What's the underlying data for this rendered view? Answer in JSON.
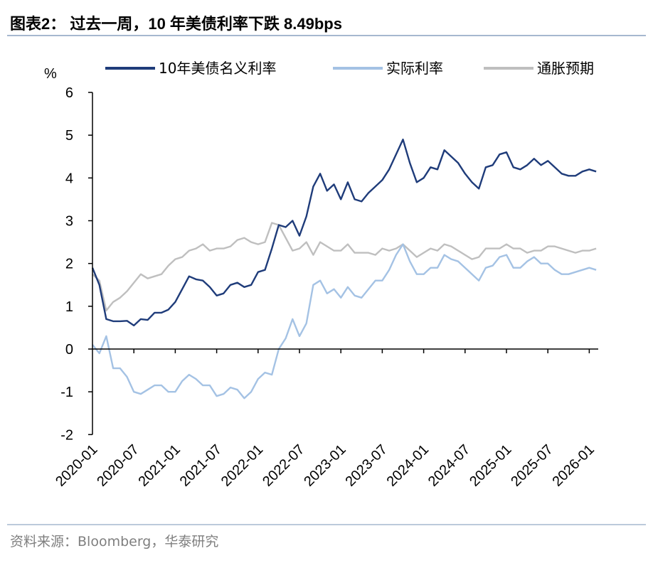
{
  "title": "图表2：  过去一周，10 年美债利率下跌 8.49bps",
  "source": "资料来源：Bloomberg，华泰研究",
  "chart_data": {
    "type": "line",
    "ylabel": "%",
    "ylim": [
      -2,
      6
    ],
    "yticks": [
      6,
      5,
      4,
      3,
      2,
      1,
      0,
      -1,
      -2
    ],
    "xlim": [
      "2020-01",
      "2026-02"
    ],
    "xticks": [
      "2020-01",
      "2020-07",
      "2021-01",
      "2021-07",
      "2022-01",
      "2022-07",
      "2023-01",
      "2023-07",
      "2024-01",
      "2024-07",
      "2025-01",
      "2025-07",
      "2026-01"
    ],
    "grid": false,
    "legend": "top",
    "x": [
      "2020-01",
      "2020-02",
      "2020-03",
      "2020-04",
      "2020-05",
      "2020-06",
      "2020-07",
      "2020-08",
      "2020-09",
      "2020-10",
      "2020-11",
      "2020-12",
      "2021-01",
      "2021-02",
      "2021-03",
      "2021-04",
      "2021-05",
      "2021-06",
      "2021-07",
      "2021-08",
      "2021-09",
      "2021-10",
      "2021-11",
      "2021-12",
      "2022-01",
      "2022-02",
      "2022-03",
      "2022-04",
      "2022-05",
      "2022-06",
      "2022-07",
      "2022-08",
      "2022-09",
      "2022-10",
      "2022-11",
      "2022-12",
      "2023-01",
      "2023-02",
      "2023-03",
      "2023-04",
      "2023-05",
      "2023-06",
      "2023-07",
      "2023-08",
      "2023-09",
      "2023-10",
      "2023-11",
      "2023-12",
      "2024-01",
      "2024-02",
      "2024-03",
      "2024-04",
      "2024-05",
      "2024-06",
      "2024-07",
      "2024-08",
      "2024-09",
      "2024-10",
      "2024-11",
      "2024-12",
      "2025-01",
      "2025-02",
      "2025-03",
      "2025-04",
      "2025-05",
      "2025-06",
      "2025-07",
      "2025-08",
      "2025-09",
      "2025-10",
      "2025-11",
      "2025-12",
      "2026-01",
      "2026-02"
    ],
    "series": [
      {
        "name": "10年美债名义利率",
        "color": "#1f3c7a",
        "values": [
          1.9,
          1.5,
          0.7,
          0.65,
          0.65,
          0.66,
          0.55,
          0.7,
          0.68,
          0.85,
          0.85,
          0.92,
          1.1,
          1.4,
          1.7,
          1.63,
          1.6,
          1.45,
          1.25,
          1.3,
          1.5,
          1.55,
          1.45,
          1.5,
          1.8,
          1.85,
          2.35,
          2.9,
          2.85,
          3.0,
          2.65,
          3.1,
          3.8,
          4.1,
          3.7,
          3.85,
          3.5,
          3.9,
          3.5,
          3.45,
          3.65,
          3.8,
          3.95,
          4.2,
          4.55,
          4.9,
          4.35,
          3.9,
          4.0,
          4.25,
          4.2,
          4.65,
          4.5,
          4.35,
          4.1,
          3.9,
          3.75,
          4.25,
          4.3,
          4.55,
          4.6,
          4.25,
          4.2,
          4.3,
          4.45,
          4.3,
          4.4,
          4.25,
          4.1,
          4.05,
          4.05,
          4.15,
          4.2,
          4.15
        ]
      },
      {
        "name": "实际利率",
        "color": "#a4c2e4",
        "values": [
          0.1,
          -0.1,
          0.3,
          -0.45,
          -0.45,
          -0.65,
          -1.0,
          -1.05,
          -0.95,
          -0.85,
          -0.85,
          -1.0,
          -1.0,
          -0.75,
          -0.6,
          -0.7,
          -0.85,
          -0.85,
          -1.1,
          -1.05,
          -0.9,
          -0.95,
          -1.15,
          -1.0,
          -0.7,
          -0.55,
          -0.6,
          0.0,
          0.25,
          0.7,
          0.3,
          0.6,
          1.5,
          1.6,
          1.3,
          1.4,
          1.2,
          1.45,
          1.25,
          1.2,
          1.4,
          1.6,
          1.6,
          1.85,
          2.2,
          2.45,
          2.05,
          1.75,
          1.75,
          1.9,
          1.9,
          2.2,
          2.1,
          2.05,
          1.9,
          1.75,
          1.6,
          1.9,
          1.95,
          2.15,
          2.2,
          1.9,
          1.9,
          2.05,
          2.15,
          2.0,
          2.0,
          1.85,
          1.75,
          1.75,
          1.8,
          1.85,
          1.9,
          1.85
        ]
      },
      {
        "name": "通胀预期",
        "color": "#bfbfbf",
        "values": [
          1.75,
          1.6,
          0.9,
          1.1,
          1.2,
          1.35,
          1.55,
          1.75,
          1.65,
          1.7,
          1.75,
          1.95,
          2.1,
          2.15,
          2.3,
          2.35,
          2.45,
          2.3,
          2.35,
          2.35,
          2.4,
          2.55,
          2.6,
          2.5,
          2.45,
          2.5,
          2.95,
          2.9,
          2.6,
          2.3,
          2.35,
          2.5,
          2.2,
          2.5,
          2.4,
          2.3,
          2.3,
          2.45,
          2.25,
          2.25,
          2.25,
          2.2,
          2.35,
          2.3,
          2.35,
          2.45,
          2.3,
          2.15,
          2.25,
          2.35,
          2.3,
          2.45,
          2.4,
          2.3,
          2.2,
          2.1,
          2.15,
          2.35,
          2.35,
          2.35,
          2.45,
          2.35,
          2.35,
          2.25,
          2.3,
          2.3,
          2.4,
          2.4,
          2.35,
          2.3,
          2.25,
          2.3,
          2.3,
          2.35
        ]
      }
    ]
  }
}
